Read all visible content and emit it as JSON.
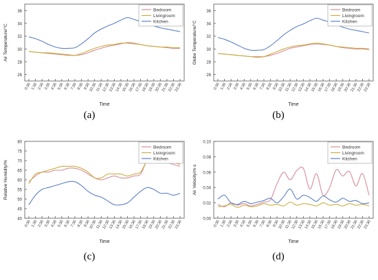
{
  "captions": [
    "(a)",
    "(b)",
    "(c)",
    "(d)"
  ],
  "colors": {
    "bedroom": "#d98a98",
    "livingroom": "#c9ad3c",
    "kitchen": "#5b7fc9"
  },
  "chart_data": [
    {
      "type": "line",
      "ylabel": "Air Temperature/°C",
      "xlabel": "Time",
      "ylim": [
        25,
        37
      ],
      "yticks": [
        26,
        28,
        30,
        32,
        34,
        36
      ],
      "categories": [
        "0:30",
        "1:30",
        "2:30",
        "3:30",
        "4:30",
        "5:30",
        "6:30",
        "7:30",
        "8:30",
        "9:30",
        "10:30",
        "11:30",
        "12:30",
        "13:30",
        "14:30",
        "15:30",
        "16:30",
        "17:30",
        "18:30",
        "19:30",
        "20:30",
        "21:30",
        "22:30",
        "23:30"
      ],
      "legend": "top-right",
      "series": [
        {
          "name": "Bedroom",
          "color": "#d98a98",
          "values": [
            29.6,
            29.5,
            29.4,
            29.3,
            29.2,
            29.1,
            29.0,
            29.0,
            29.1,
            29.4,
            29.8,
            30.1,
            30.4,
            30.6,
            30.8,
            31.0,
            30.9,
            30.7,
            30.5,
            30.4,
            30.3,
            30.2,
            30.1,
            30.1
          ]
        },
        {
          "name": "Livingroom",
          "color": "#c9ad3c",
          "values": [
            29.6,
            29.5,
            29.4,
            29.4,
            29.3,
            29.2,
            29.1,
            29.0,
            29.3,
            29.7,
            30.1,
            30.4,
            30.6,
            30.7,
            30.9,
            30.9,
            30.8,
            30.7,
            30.5,
            30.4,
            30.3,
            30.3,
            30.2,
            30.2
          ]
        },
        {
          "name": "Kitchen",
          "color": "#5b7fc9",
          "values": [
            31.9,
            31.6,
            31.2,
            30.7,
            30.3,
            30.1,
            30.1,
            30.2,
            30.8,
            31.6,
            32.5,
            33.1,
            33.6,
            34.0,
            34.5,
            34.9,
            34.6,
            34.3,
            34.0,
            33.6,
            33.3,
            33.1,
            32.9,
            32.7
          ]
        }
      ]
    },
    {
      "type": "line",
      "ylabel": "Globe Temperature/°C",
      "xlabel": "Time",
      "ylim": [
        25,
        37
      ],
      "yticks": [
        26,
        28,
        30,
        32,
        34,
        36
      ],
      "categories": [
        "0:30",
        "1:30",
        "2:30",
        "3:30",
        "4:30",
        "5:30",
        "6:30",
        "7:30",
        "8:30",
        "9:30",
        "10:30",
        "11:30",
        "12:30",
        "13:30",
        "14:30",
        "15:30",
        "16:30",
        "17:30",
        "18:30",
        "19:30",
        "20:30",
        "21:30",
        "22:30",
        "23:30"
      ],
      "legend": "top-right",
      "series": [
        {
          "name": "Bedroom",
          "color": "#d98a98",
          "values": [
            29.3,
            29.2,
            29.1,
            29.0,
            28.9,
            28.8,
            28.8,
            28.8,
            29.0,
            29.3,
            29.7,
            30.1,
            30.3,
            30.5,
            30.7,
            30.8,
            30.7,
            30.6,
            30.4,
            30.2,
            30.1,
            30.0,
            30.0,
            29.9
          ]
        },
        {
          "name": "Livingroom",
          "color": "#c9ad3c",
          "values": [
            29.3,
            29.2,
            29.1,
            29.0,
            28.9,
            28.8,
            28.7,
            28.8,
            29.2,
            29.6,
            30.0,
            30.3,
            30.5,
            30.6,
            30.8,
            30.9,
            30.8,
            30.6,
            30.4,
            30.3,
            30.2,
            30.1,
            30.1,
            30.0
          ]
        },
        {
          "name": "Kitchen",
          "color": "#5b7fc9",
          "values": [
            31.8,
            31.5,
            31.1,
            30.6,
            30.1,
            29.8,
            29.8,
            29.9,
            30.5,
            31.3,
            32.2,
            32.9,
            33.5,
            33.9,
            34.4,
            34.8,
            34.5,
            34.2,
            33.8,
            33.4,
            33.1,
            32.9,
            32.7,
            32.5
          ]
        }
      ]
    },
    {
      "type": "line",
      "ylabel": "Relative Humidity/%",
      "xlabel": "Time",
      "ylim": [
        40,
        80
      ],
      "yticks": [
        40,
        45,
        50,
        55,
        60,
        65,
        70,
        75,
        80
      ],
      "categories": [
        "0:30",
        "1:30",
        "2:30",
        "3:30",
        "4:30",
        "5:30",
        "6:30",
        "7:30",
        "8:30",
        "9:30",
        "10:30",
        "11:30",
        "12:30",
        "13:30",
        "14:30",
        "15:30",
        "16:30",
        "17:30",
        "18:30",
        "19:30",
        "20:30",
        "21:30",
        "22:30",
        "23:30"
      ],
      "legend": "top-right",
      "series": [
        {
          "name": "Bedroom",
          "color": "#d98a98",
          "values": [
            59,
            62,
            64,
            64,
            65,
            65,
            66,
            66,
            65,
            63,
            61,
            60,
            61,
            62,
            61,
            61,
            62,
            63,
            70,
            70,
            69,
            69,
            68,
            67
          ]
        },
        {
          "name": "Livingroom",
          "color": "#c9ad3c",
          "values": [
            58,
            63,
            64,
            65,
            66,
            67,
            67,
            67,
            66,
            64,
            61,
            61,
            63,
            63,
            63,
            62,
            63,
            64,
            70,
            71,
            70,
            69,
            69,
            68
          ]
        },
        {
          "name": "Kitchen",
          "color": "#5b7fc9",
          "values": [
            47,
            52,
            55,
            56,
            57,
            58,
            59,
            59,
            57,
            54,
            52,
            51,
            49,
            47,
            47,
            48,
            51,
            54,
            56,
            55,
            53,
            53,
            52,
            53
          ]
        }
      ]
    },
    {
      "type": "line",
      "ylabel": "Air Velocity/m·s",
      "xlabel": "Time",
      "ylim": [
        0.0,
        0.1
      ],
      "yticks": [
        0.0,
        0.02,
        0.04,
        0.06,
        0.08,
        0.1
      ],
      "yticklabels": [
        "0.00",
        "0.02",
        "0.04",
        "0.06",
        "0.08",
        "0.10"
      ],
      "categories": [
        "0:30",
        "1:30",
        "2:30",
        "3:30",
        "4:30",
        "5:30",
        "6:30",
        "7:30",
        "8:30",
        "9:30",
        "10:30",
        "11:30",
        "12:30",
        "13:30",
        "14:30",
        "15:30",
        "16:30",
        "17:30",
        "18:30",
        "19:30",
        "20:30",
        "21:30",
        "22:30",
        "23:30"
      ],
      "legend": "top-right",
      "series": [
        {
          "name": "Bedroom",
          "color": "#d98a98",
          "values": [
            0.018,
            0.015,
            0.02,
            0.017,
            0.019,
            0.016,
            0.018,
            0.021,
            0.024,
            0.045,
            0.06,
            0.05,
            0.062,
            0.065,
            0.038,
            0.058,
            0.03,
            0.04,
            0.063,
            0.055,
            0.061,
            0.042,
            0.058,
            0.03
          ]
        },
        {
          "name": "Livingroom",
          "color": "#c9ad3c",
          "values": [
            0.015,
            0.016,
            0.018,
            0.014,
            0.017,
            0.015,
            0.016,
            0.019,
            0.017,
            0.018,
            0.016,
            0.021,
            0.017,
            0.019,
            0.018,
            0.016,
            0.02,
            0.017,
            0.018,
            0.016,
            0.019,
            0.017,
            0.018,
            0.016
          ]
        },
        {
          "name": "Kitchen",
          "color": "#5b7fc9",
          "values": [
            0.025,
            0.03,
            0.02,
            0.018,
            0.022,
            0.019,
            0.021,
            0.023,
            0.026,
            0.02,
            0.028,
            0.038,
            0.025,
            0.03,
            0.027,
            0.022,
            0.029,
            0.024,
            0.021,
            0.026,
            0.022,
            0.023,
            0.019,
            0.02
          ]
        }
      ]
    }
  ]
}
